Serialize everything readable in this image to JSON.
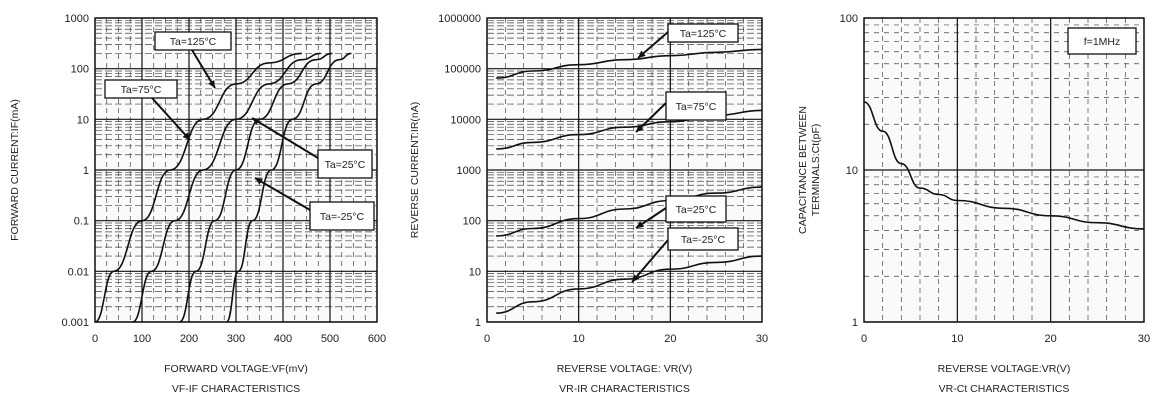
{
  "chart_data": [
    {
      "type": "line",
      "xlabel": "FORWARD VOLTAGE:VF(mV)",
      "ylabel": "FORWARD CURRENT:IF(mA)",
      "caption": "VF-IF CHARACTERISTICS",
      "xlim": [
        0,
        600
      ],
      "ylim": [
        0.001,
        1000
      ],
      "yscale": "log",
      "grid": true,
      "x_ticks": [
        "0",
        "100",
        "200",
        "300",
        "400",
        "500",
        "600"
      ],
      "y_ticks": [
        "0.001",
        "0.01",
        "0.1",
        "1",
        "10",
        "100",
        "1000"
      ],
      "series": [
        {
          "name": "Ta=125°C",
          "x": [
            0,
            40,
            100,
            160,
            230,
            300,
            370,
            440
          ],
          "y": [
            0.001,
            0.01,
            0.1,
            1,
            10,
            50,
            130,
            200
          ]
        },
        {
          "name": "Ta=75°C",
          "x": [
            80,
            120,
            170,
            230,
            300,
            370,
            440,
            480
          ],
          "y": [
            0.001,
            0.01,
            0.1,
            1,
            10,
            50,
            150,
            200
          ]
        },
        {
          "name": "Ta=25°C",
          "x": [
            180,
            215,
            255,
            300,
            350,
            410,
            470,
            505
          ],
          "y": [
            0.001,
            0.01,
            0.1,
            1,
            10,
            50,
            150,
            200
          ]
        },
        {
          "name": "Ta=-25°C",
          "x": [
            280,
            305,
            335,
            375,
            420,
            470,
            520,
            545
          ],
          "y": [
            0.001,
            0.01,
            0.1,
            1,
            10,
            50,
            150,
            200
          ]
        }
      ],
      "annotations": [
        "Ta=125°C",
        "Ta=75°C",
        "Ta=25°C",
        "Ta=-25°C"
      ]
    },
    {
      "type": "line",
      "xlabel": "REVERSE VOLTAGE: VR(V)",
      "ylabel": "REVERSE CURRENT:IR(nA)",
      "caption": "VR-IR CHARACTERISTICS",
      "xlim": [
        0,
        30
      ],
      "ylim": [
        1,
        1000000
      ],
      "yscale": "log",
      "grid": true,
      "x_ticks": [
        "0",
        "10",
        "20",
        "30"
      ],
      "y_ticks": [
        "1",
        "10",
        "100",
        "1000",
        "10000",
        "100000",
        "1000000"
      ],
      "series": [
        {
          "name": "Ta=125°C",
          "x": [
            1,
            5,
            10,
            15,
            20,
            25,
            30
          ],
          "y": [
            65000,
            90000,
            120000,
            150000,
            180000,
            210000,
            240000
          ]
        },
        {
          "name": "Ta=75°C",
          "x": [
            1,
            5,
            10,
            15,
            20,
            25,
            30
          ],
          "y": [
            2600,
            3500,
            5000,
            7000,
            9000,
            12000,
            15000
          ]
        },
        {
          "name": "Ta=25°C",
          "x": [
            1,
            5,
            10,
            15,
            20,
            25,
            30
          ],
          "y": [
            50,
            70,
            110,
            170,
            250,
            350,
            460
          ]
        },
        {
          "name": "Ta=-25°C",
          "x": [
            1,
            5,
            10,
            15,
            20,
            25,
            30
          ],
          "y": [
            1.5,
            2.5,
            4.5,
            7,
            11,
            15,
            20
          ]
        }
      ],
      "annotations": [
        "Ta=125°C",
        "Ta=75°C",
        "Ta=25°C",
        "Ta=-25°C"
      ]
    },
    {
      "type": "line",
      "xlabel": "REVERSE VOLTAGE:VR(V)",
      "ylabel": "CAPACITANCE BETWEEN TERMINALS:Ct(pF)",
      "caption": "VR-Ct CHARACTERISTICS",
      "xlim": [
        0,
        30
      ],
      "ylim": [
        1,
        100
      ],
      "yscale": "log",
      "grid": true,
      "x_ticks": [
        "0",
        "10",
        "20",
        "30"
      ],
      "y_ticks": [
        "1",
        "10",
        "100"
      ],
      "series": [
        {
          "x": [
            0,
            2,
            4,
            6,
            8,
            10,
            15,
            20,
            25,
            30
          ],
          "y": [
            28,
            18,
            11,
            7.6,
            6.9,
            6.3,
            5.6,
            5.0,
            4.5,
            4.1
          ]
        }
      ],
      "annotations": [
        "f=1MHz"
      ]
    }
  ]
}
